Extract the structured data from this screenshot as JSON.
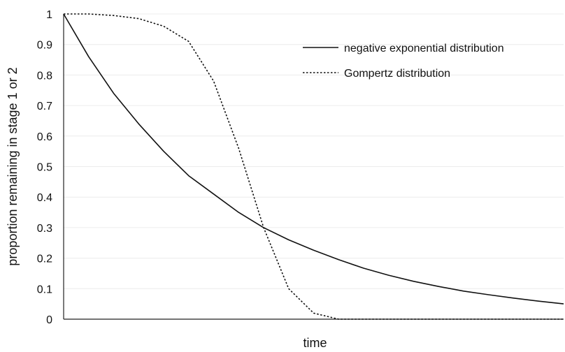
{
  "chart_data": {
    "type": "line",
    "title": "",
    "xlabel": "time",
    "ylabel": "proportion remaining in stage 1 or 2",
    "ylim": [
      0,
      1
    ],
    "xlim": [
      0,
      10
    ],
    "yticks": [
      "0",
      "0.1",
      "0.2",
      "0.3",
      "0.4",
      "0.5",
      "0.6",
      "0.7",
      "0.8",
      "0.9",
      "1"
    ],
    "grid": true,
    "legend_position": "top-right",
    "series": [
      {
        "name": "negative exponential distribution",
        "style": "solid",
        "color": "#111111",
        "x": [
          0,
          0.5,
          1,
          1.5,
          2,
          2.5,
          3,
          3.5,
          4,
          4.5,
          5,
          5.5,
          6,
          6.5,
          7,
          7.5,
          8,
          8.5,
          9,
          9.5,
          10
        ],
        "values": [
          1.0,
          0.86,
          0.74,
          0.64,
          0.55,
          0.47,
          0.41,
          0.35,
          0.3,
          0.26,
          0.226,
          0.195,
          0.167,
          0.144,
          0.124,
          0.107,
          0.092,
          0.08,
          0.069,
          0.059,
          0.05
        ]
      },
      {
        "name": "Gompertz distribution",
        "style": "dotted",
        "color": "#111111",
        "x": [
          0,
          0.5,
          1,
          1.5,
          2,
          2.5,
          3,
          3.5,
          4,
          4.5,
          5,
          5.5,
          6,
          6.5,
          7,
          8,
          9,
          10
        ],
        "values": [
          1.0,
          1.0,
          0.995,
          0.985,
          0.96,
          0.91,
          0.78,
          0.56,
          0.3,
          0.1,
          0.02,
          0.0,
          0.0,
          0.0,
          0.0,
          0.0,
          0.0,
          0.0
        ]
      }
    ]
  }
}
